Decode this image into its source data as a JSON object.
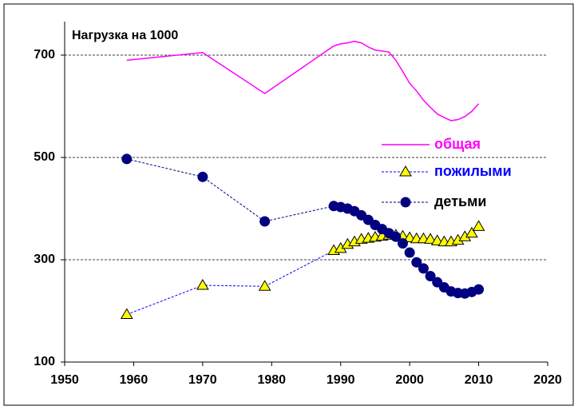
{
  "chart_data": {
    "type": "line",
    "title": "Нагрузка на 1000",
    "x": [
      1959,
      1970,
      1979,
      1989,
      1990,
      1991,
      1992,
      1993,
      1994,
      1995,
      1996,
      1997,
      1998,
      1999,
      2000,
      2001,
      2002,
      2003,
      2004,
      2005,
      2006,
      2007,
      2008,
      2009,
      2010
    ],
    "series": [
      {
        "name": "общая",
        "color": "#ff00ff",
        "marker": "none",
        "dash": false,
        "values": [
          690,
          705,
          625,
          718,
          722,
          724,
          727,
          724,
          716,
          710,
          708,
          706,
          690,
          668,
          645,
          630,
          612,
          598,
          585,
          578,
          572,
          574,
          580,
          590,
          605
        ]
      },
      {
        "name": "пожилыми",
        "color": "#0000ff",
        "marker": "triangle",
        "marker_color": "#ffff00",
        "dash": true,
        "values": [
          193,
          250,
          248,
          318,
          322,
          330,
          335,
          340,
          342,
          344,
          346,
          348,
          348,
          346,
          343,
          341,
          341,
          340,
          337,
          335,
          335,
          338,
          345,
          352,
          365
        ]
      },
      {
        "name": "детьми",
        "color": "#000080",
        "marker": "circle",
        "marker_color": "#000080",
        "dash": true,
        "values": [
          497,
          462,
          375,
          405,
          403,
          400,
          395,
          387,
          378,
          368,
          360,
          352,
          345,
          332,
          314,
          295,
          283,
          268,
          256,
          246,
          238,
          235,
          234,
          237,
          242
        ]
      }
    ],
    "xlim": [
      1950,
      2020
    ],
    "xticks": [
      1950,
      1960,
      1970,
      1980,
      1990,
      2000,
      2010,
      2020
    ],
    "ylim": [
      100,
      750
    ],
    "yticks": [
      100,
      300,
      500,
      700
    ],
    "grid": true,
    "legend": "right"
  }
}
